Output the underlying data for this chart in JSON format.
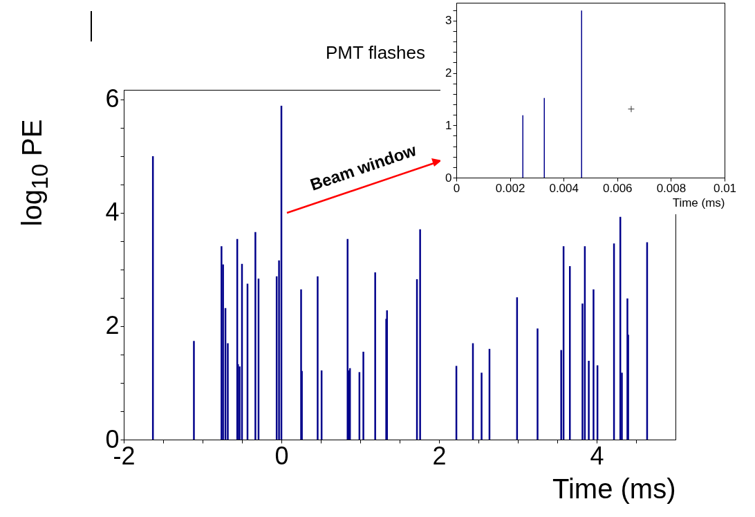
{
  "chart_data": [
    {
      "type": "bar",
      "title": "PMT flashes",
      "xlabel": "Time (ms)",
      "ylabel": "log$_{10}$ PE",
      "annotations": [
        "Beam window"
      ],
      "x": [
        -1.63,
        -1.11,
        -0.76,
        -0.74,
        -0.71,
        -0.68,
        -0.56,
        -0.55,
        -0.53,
        -0.5,
        -0.43,
        -0.33,
        -0.29,
        -0.06,
        -0.03,
        0.0,
        0.25,
        0.26,
        0.46,
        0.51,
        0.84,
        0.85,
        0.87,
        0.99,
        1.04,
        1.19,
        1.33,
        1.34,
        1.72,
        1.76,
        2.22,
        2.43,
        2.54,
        2.64,
        2.99,
        3.25,
        3.55,
        3.58,
        3.66,
        3.82,
        3.85,
        3.9,
        3.96,
        4.01,
        4.22,
        4.3,
        4.32,
        4.39,
        4.4,
        4.64
      ],
      "values": [
        5.0,
        1.74,
        3.41,
        3.09,
        2.32,
        1.7,
        3.54,
        1.33,
        1.29,
        3.1,
        2.75,
        3.66,
        2.84,
        2.88,
        3.16,
        5.89,
        2.65,
        1.21,
        2.88,
        1.22,
        3.54,
        1.22,
        1.26,
        1.19,
        1.55,
        2.95,
        2.13,
        2.28,
        2.83,
        3.71,
        1.3,
        1.7,
        1.18,
        1.6,
        2.51,
        1.96,
        1.58,
        3.41,
        3.06,
        2.4,
        3.41,
        1.39,
        2.65,
        1.31,
        3.46,
        3.93,
        1.18,
        2.49,
        1.85,
        3.48
      ],
      "color": "#00008b",
      "xlim": [
        -2,
        5
      ],
      "ylim": [
        0,
        6.17
      ],
      "xticks": [
        -2,
        {
          "value": -1.5,
          "label": null
        },
        {
          "value": -1,
          "label": null
        },
        {
          "value": -0.5,
          "label": null
        },
        0,
        {
          "value": 0.5,
          "label": null
        },
        {
          "value": 1,
          "label": null
        },
        {
          "value": 1.5,
          "label": null
        },
        2,
        {
          "value": 2.5,
          "label": null
        },
        {
          "value": 3,
          "label": null
        },
        {
          "value": 3.5,
          "label": null
        },
        4,
        {
          "value": 4.5,
          "label": null
        }
      ],
      "yticks": [
        0,
        {
          "value": 0.5,
          "label": null
        },
        {
          "value": 1,
          "label": null
        },
        {
          "value": 1.5,
          "label": null
        },
        2,
        {
          "value": 2.5,
          "label": null
        },
        {
          "value": 3,
          "label": null
        },
        {
          "value": 3.5,
          "label": null
        },
        4,
        {
          "value": 4.5,
          "label": null
        },
        {
          "value": 5,
          "label": null
        },
        {
          "value": 5.5,
          "label": null
        },
        6
      ]
    },
    {
      "type": "bar",
      "xlabel": "Time (ms)",
      "series": [
        {
          "color": "#00008b",
          "x": [
            0.00248,
            0.00328,
            0.00467
          ],
          "values": [
            1.19,
            1.52,
            3.19
          ]
        },
        {
          "type": "scatter",
          "marker": "cross",
          "color": "#333333",
          "x": [
            0.00652
          ],
          "values": [
            1.31
          ]
        }
      ],
      "xlim": [
        0,
        0.01
      ],
      "ylim": [
        0,
        3.34
      ],
      "xticks": [
        0,
        0.002,
        0.004,
        0.006,
        0.008,
        0.01
      ],
      "yticks": [
        0,
        {
          "value": 0.2,
          "label": null
        },
        {
          "value": 0.4,
          "label": null
        },
        {
          "value": 0.6,
          "label": null
        },
        {
          "value": 0.8,
          "label": null
        },
        1,
        {
          "value": 1.2,
          "label": null
        },
        {
          "value": 1.4,
          "label": null
        },
        {
          "value": 1.6,
          "label": null
        },
        {
          "value": 1.8,
          "label": null
        },
        2,
        {
          "value": 2.2,
          "label": null
        },
        {
          "value": 2.4,
          "label": null
        },
        {
          "value": 2.6,
          "label": null
        },
        {
          "value": 2.8,
          "label": null
        },
        3,
        {
          "value": 3.2,
          "label": null
        }
      ]
    }
  ]
}
